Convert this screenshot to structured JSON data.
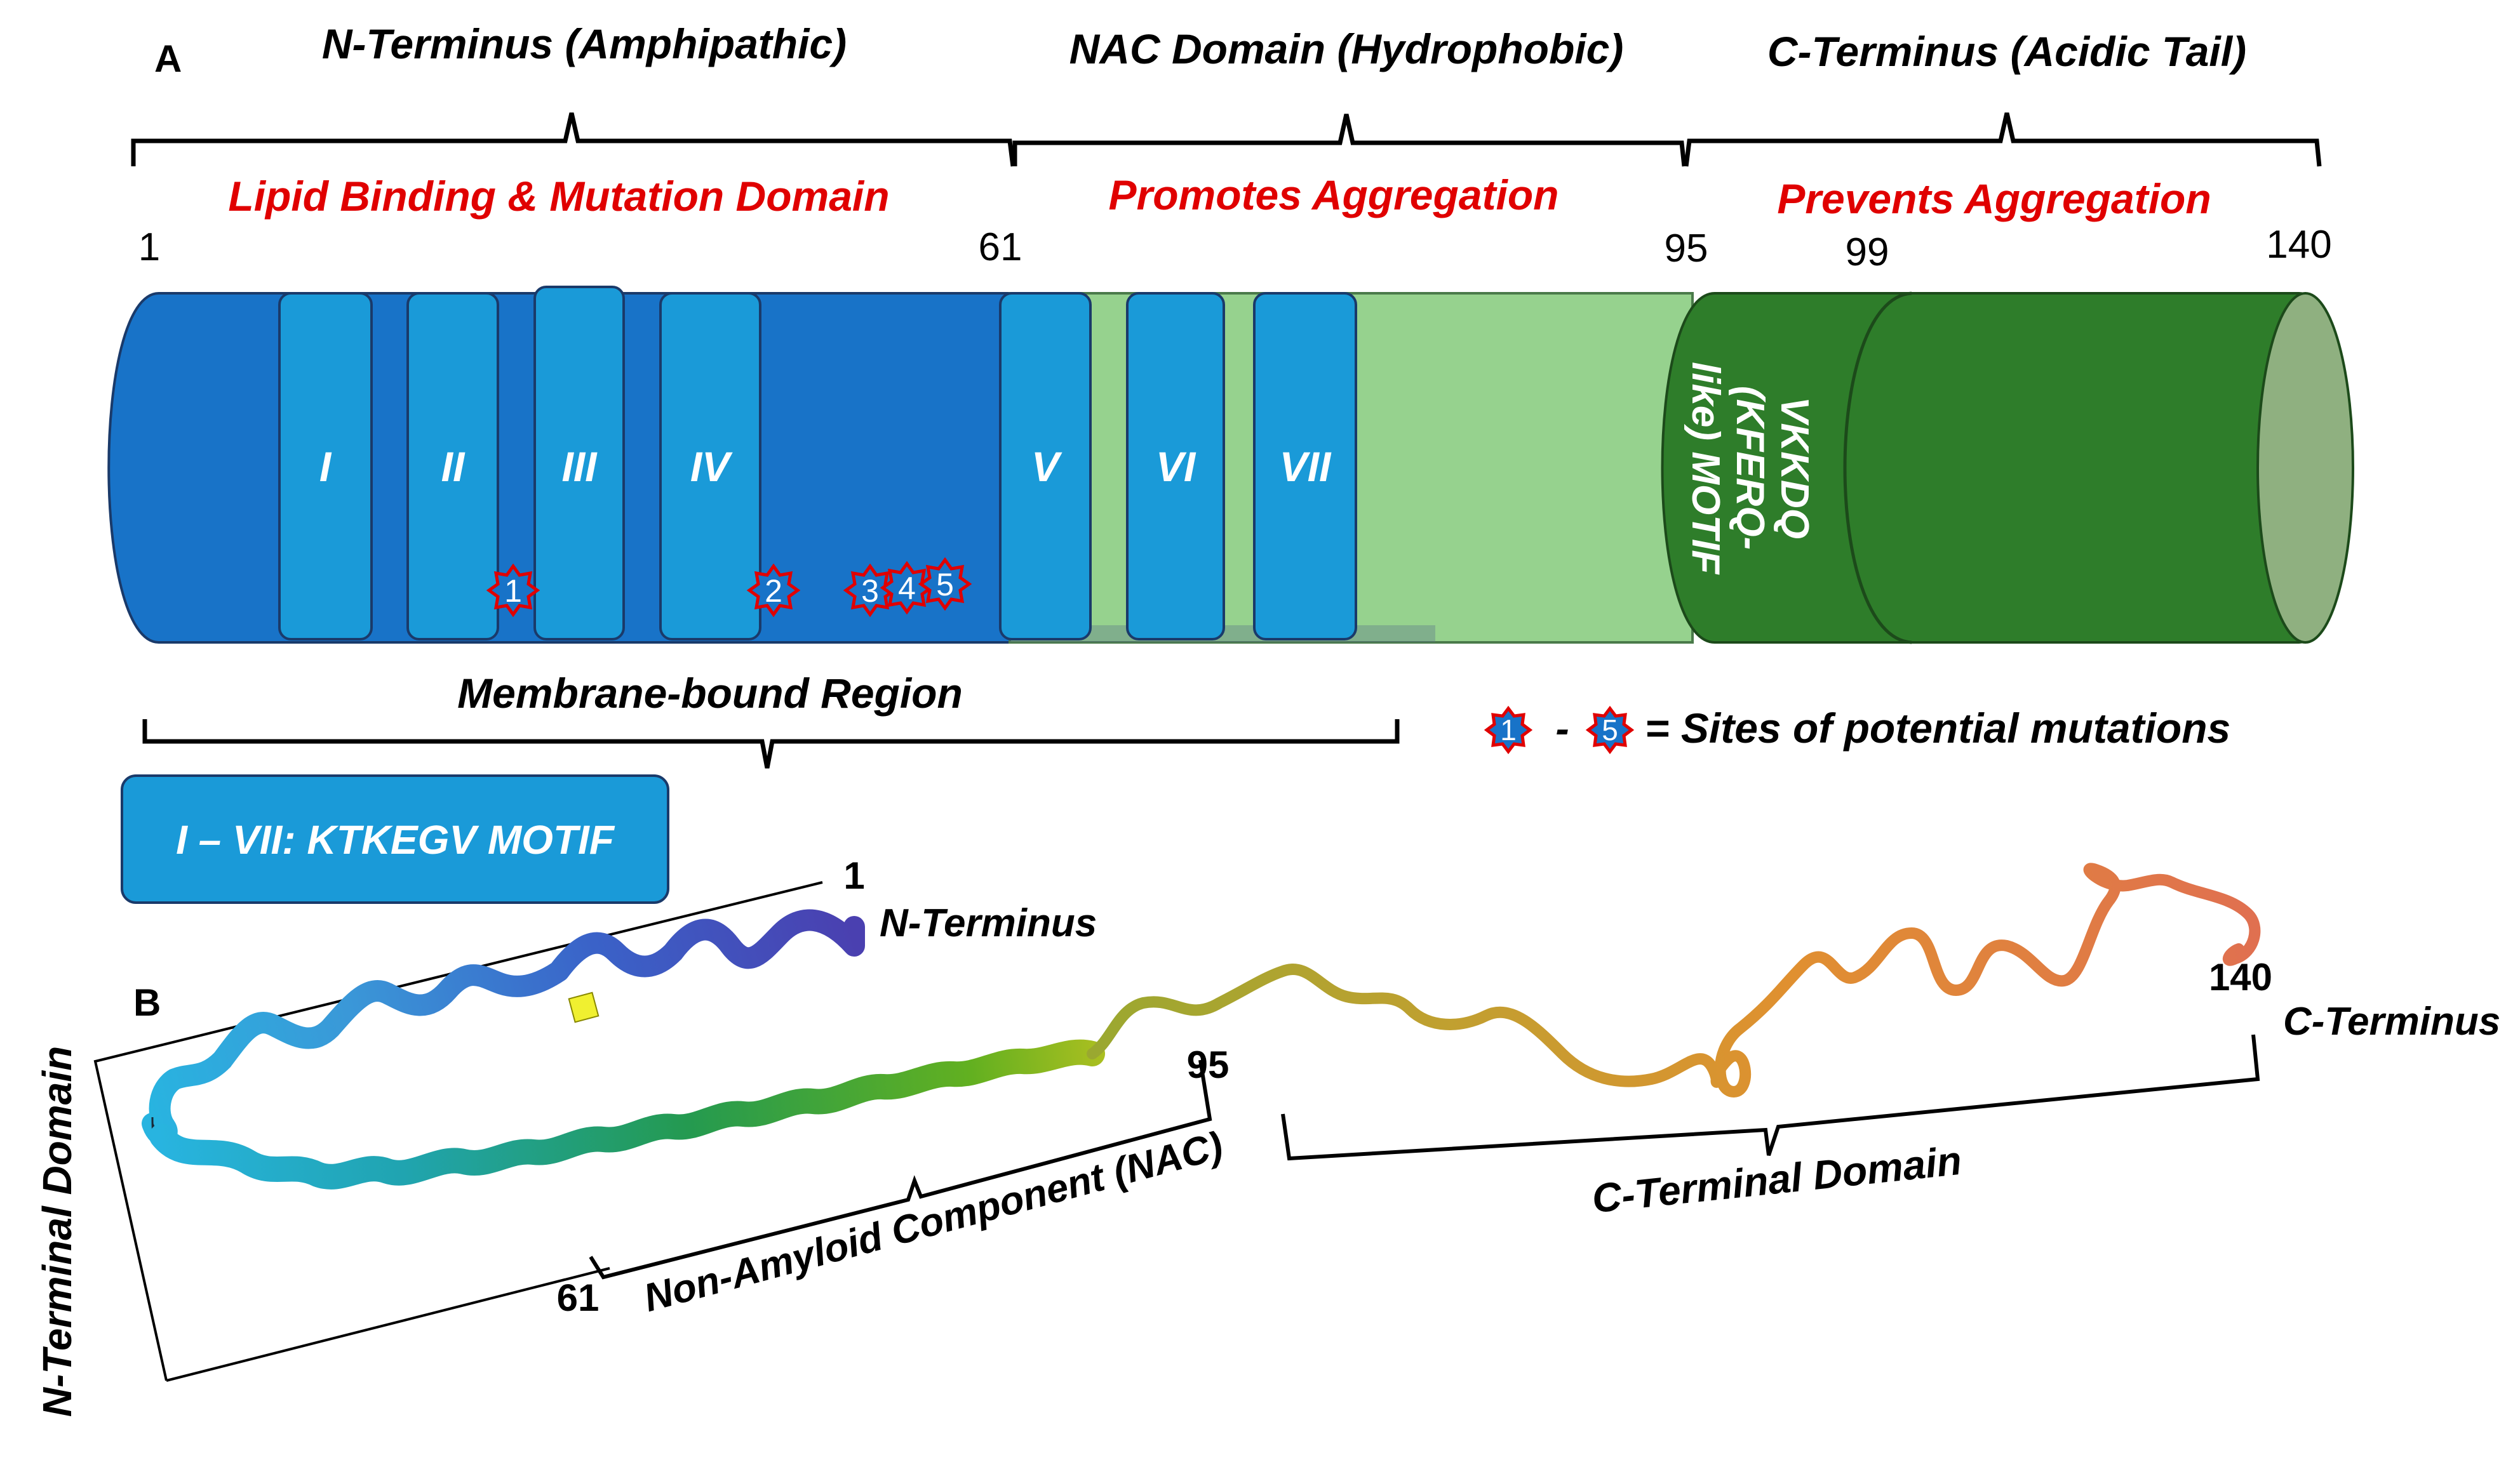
{
  "panel_a": {
    "panel_label": "A",
    "domains": [
      {
        "title": "N-Terminus (Amphipathic)",
        "role": "Lipid Binding & Mutation Domain"
      },
      {
        "title": "NAC Domain (Hydrophobic)",
        "role": "Promotes Aggregation"
      },
      {
        "title": "C-Terminus (Acidic Tail)",
        "role": "Prevents Aggregation"
      }
    ],
    "positions": [
      "1",
      "61",
      "95",
      "99",
      "140"
    ],
    "repeats": [
      "I",
      "II",
      "III",
      "IV",
      "V",
      "VI",
      "VII"
    ],
    "mutation_sites": [
      "1",
      "2",
      "3",
      "4",
      "5"
    ],
    "motif_label": "VKKDQ (KFERQ-like) MOTIF",
    "motif_lines": [
      "VKKDQ",
      "(KFERQ-",
      "like) MOTIF"
    ],
    "membrane_region": "Membrane-bound Region",
    "legend": {
      "from_site": "1",
      "dash": "-",
      "to_site": "5",
      "text": "= Sites of potential mutations"
    },
    "repeat_box_label": "I – VII: KTKEGV MOTIF",
    "colors": {
      "n_domain": "#1873c8",
      "repeat": "#1a9ad8",
      "nac": "#96d28e",
      "c_domain": "#2e7d2a",
      "highlight_red": "#e00000"
    }
  },
  "panel_b": {
    "panel_label": "B",
    "labels": {
      "pos_1": "1",
      "n_terminus": "N-Terminus",
      "pos_95": "95",
      "pos_61": "61",
      "pos_140": "140",
      "c_terminus": "C-Terminus",
      "n_terminal_domain": "N-Terminal Domain",
      "nac": "Non-Amyloid Component (NAC)",
      "c_terminal_domain": "C-Terminal Domain"
    }
  }
}
